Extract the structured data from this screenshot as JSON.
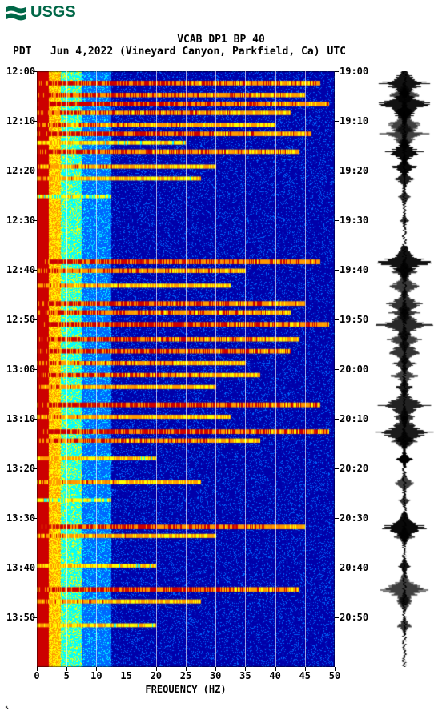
{
  "logo": {
    "text": "USGS",
    "color": "#006747"
  },
  "title": "VCAB DP1 BP 40",
  "subtitle_left": "PDT",
  "subtitle_date": "Jun 4,2022 (Vineyard Canyon, Parkfield, Ca)",
  "subtitle_right": "UTC",
  "x_axis_label": "FREQUENCY (HZ)",
  "cursor_char": "↖",
  "spectrogram": {
    "type": "spectrogram",
    "background_color": "#0000cc",
    "x_range": [
      0,
      50
    ],
    "x_ticks": [
      0,
      5,
      10,
      15,
      20,
      25,
      30,
      35,
      40,
      45,
      50
    ],
    "y_left_labels": [
      "12:00",
      "12:10",
      "12:20",
      "12:30",
      "12:40",
      "12:50",
      "13:00",
      "13:10",
      "13:20",
      "13:30",
      "13:40",
      "13:50"
    ],
    "y_right_labels": [
      "19:00",
      "19:10",
      "19:20",
      "19:30",
      "19:40",
      "19:50",
      "20:00",
      "20:10",
      "20:20",
      "20:30",
      "20:40",
      "20:50"
    ],
    "grid_color": "#ffffff",
    "colormap": {
      "low": "#0000aa",
      "mid1": "#0066ff",
      "mid2": "#00ffff",
      "mid3": "#ffff00",
      "mid4": "#ff9900",
      "high": "#cc0000"
    },
    "event_bands": [
      {
        "y": 0.02,
        "intensity": 0.9,
        "width": 0.95
      },
      {
        "y": 0.04,
        "intensity": 0.85,
        "width": 0.9
      },
      {
        "y": 0.055,
        "intensity": 0.95,
        "width": 0.98
      },
      {
        "y": 0.07,
        "intensity": 0.8,
        "width": 0.85
      },
      {
        "y": 0.09,
        "intensity": 0.75,
        "width": 0.8
      },
      {
        "y": 0.105,
        "intensity": 0.9,
        "width": 0.92
      },
      {
        "y": 0.12,
        "intensity": 0.6,
        "width": 0.5
      },
      {
        "y": 0.135,
        "intensity": 0.85,
        "width": 0.88
      },
      {
        "y": 0.16,
        "intensity": 0.7,
        "width": 0.6
      },
      {
        "y": 0.18,
        "intensity": 0.65,
        "width": 0.55
      },
      {
        "y": 0.21,
        "intensity": 0.5,
        "width": 0.25
      },
      {
        "y": 0.32,
        "intensity": 0.95,
        "width": 0.95
      },
      {
        "y": 0.335,
        "intensity": 0.8,
        "width": 0.7
      },
      {
        "y": 0.36,
        "intensity": 0.7,
        "width": 0.65
      },
      {
        "y": 0.39,
        "intensity": 0.9,
        "width": 0.9
      },
      {
        "y": 0.405,
        "intensity": 0.85,
        "width": 0.85
      },
      {
        "y": 0.425,
        "intensity": 0.95,
        "width": 0.98
      },
      {
        "y": 0.45,
        "intensity": 0.85,
        "width": 0.88
      },
      {
        "y": 0.47,
        "intensity": 0.9,
        "width": 0.85
      },
      {
        "y": 0.49,
        "intensity": 0.75,
        "width": 0.7
      },
      {
        "y": 0.51,
        "intensity": 0.8,
        "width": 0.75
      },
      {
        "y": 0.53,
        "intensity": 0.7,
        "width": 0.6
      },
      {
        "y": 0.56,
        "intensity": 0.95,
        "width": 0.95
      },
      {
        "y": 0.58,
        "intensity": 0.7,
        "width": 0.65
      },
      {
        "y": 0.605,
        "intensity": 0.95,
        "width": 0.98
      },
      {
        "y": 0.62,
        "intensity": 0.8,
        "width": 0.75
      },
      {
        "y": 0.65,
        "intensity": 0.6,
        "width": 0.4
      },
      {
        "y": 0.69,
        "intensity": 0.7,
        "width": 0.55
      },
      {
        "y": 0.72,
        "intensity": 0.5,
        "width": 0.25
      },
      {
        "y": 0.765,
        "intensity": 0.9,
        "width": 0.9
      },
      {
        "y": 0.78,
        "intensity": 0.7,
        "width": 0.6
      },
      {
        "y": 0.83,
        "intensity": 0.6,
        "width": 0.4
      },
      {
        "y": 0.87,
        "intensity": 0.9,
        "width": 0.88
      },
      {
        "y": 0.89,
        "intensity": 0.7,
        "width": 0.55
      },
      {
        "y": 0.93,
        "intensity": 0.6,
        "width": 0.4
      }
    ],
    "low_freq_column_width": 0.08
  },
  "waveform": {
    "color": "#000000",
    "amplitudes": [
      {
        "y": 0.02,
        "a": 0.9
      },
      {
        "y": 0.04,
        "a": 0.6
      },
      {
        "y": 0.055,
        "a": 1.0
      },
      {
        "y": 0.07,
        "a": 0.5
      },
      {
        "y": 0.09,
        "a": 0.7
      },
      {
        "y": 0.105,
        "a": 0.8
      },
      {
        "y": 0.12,
        "a": 0.3
      },
      {
        "y": 0.135,
        "a": 0.7
      },
      {
        "y": 0.16,
        "a": 0.5
      },
      {
        "y": 0.18,
        "a": 0.4
      },
      {
        "y": 0.21,
        "a": 0.25
      },
      {
        "y": 0.25,
        "a": 0.15
      },
      {
        "y": 0.32,
        "a": 1.0
      },
      {
        "y": 0.335,
        "a": 0.5
      },
      {
        "y": 0.36,
        "a": 0.6
      },
      {
        "y": 0.39,
        "a": 0.7
      },
      {
        "y": 0.405,
        "a": 0.5
      },
      {
        "y": 0.425,
        "a": 0.95
      },
      {
        "y": 0.45,
        "a": 0.6
      },
      {
        "y": 0.47,
        "a": 0.7
      },
      {
        "y": 0.49,
        "a": 0.4
      },
      {
        "y": 0.51,
        "a": 0.5
      },
      {
        "y": 0.53,
        "a": 0.35
      },
      {
        "y": 0.56,
        "a": 0.9
      },
      {
        "y": 0.58,
        "a": 0.4
      },
      {
        "y": 0.605,
        "a": 1.0
      },
      {
        "y": 0.62,
        "a": 0.5
      },
      {
        "y": 0.65,
        "a": 0.3
      },
      {
        "y": 0.69,
        "a": 0.4
      },
      {
        "y": 0.72,
        "a": 0.2
      },
      {
        "y": 0.765,
        "a": 0.85
      },
      {
        "y": 0.78,
        "a": 0.4
      },
      {
        "y": 0.83,
        "a": 0.3
      },
      {
        "y": 0.87,
        "a": 0.9
      },
      {
        "y": 0.89,
        "a": 0.4
      },
      {
        "y": 0.93,
        "a": 0.3
      }
    ]
  }
}
